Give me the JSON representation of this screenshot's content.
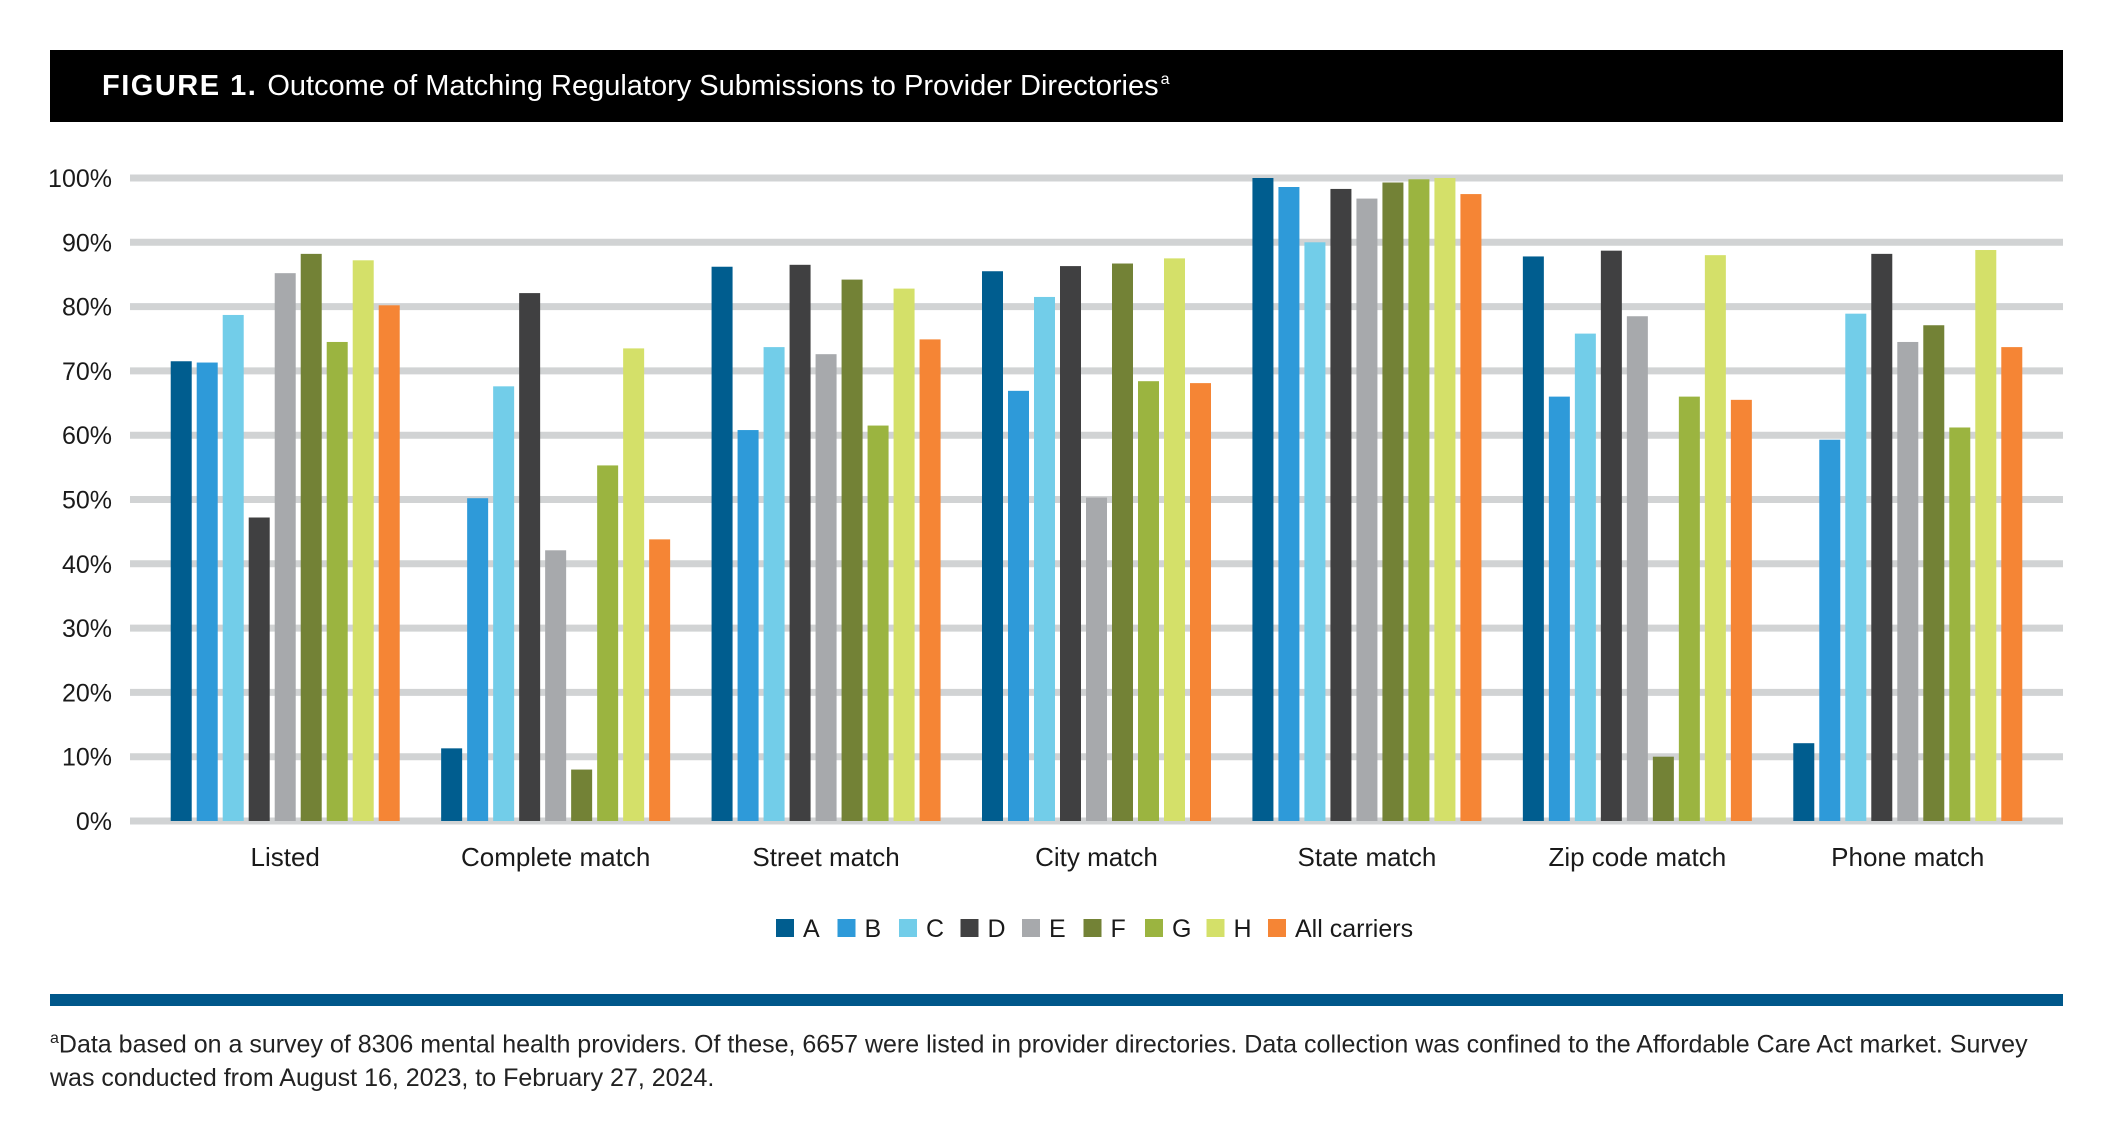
{
  "header": {
    "figure_label": "FIGURE 1.",
    "title": "Outcome of Matching Regulatory Submissions to Provider Directories",
    "title_note_mark": "a"
  },
  "footnote": {
    "mark": "a",
    "text": "Data based on a survey of 8306 mental health providers. Of these, 6657 were listed in provider directories. Data collection was confined to the Affordable Care Act market. Survey was conducted from August 16, 2023, to February 27, 2024."
  },
  "chart_data": {
    "type": "bar",
    "title": "Outcome of Matching Regulatory Submissions to Provider Directories",
    "xlabel": "",
    "ylabel": "",
    "ylim": [
      0,
      100
    ],
    "yticks": [
      0,
      10,
      20,
      30,
      40,
      50,
      60,
      70,
      80,
      90,
      100
    ],
    "ytick_labels": [
      "0%",
      "10%",
      "20%",
      "30%",
      "40%",
      "50%",
      "60%",
      "70%",
      "80%",
      "90%",
      "100%"
    ],
    "grid": true,
    "legend_position": "bottom-center",
    "categories": [
      "Listed",
      "Complete match",
      "Street match",
      "City match",
      "State match",
      "Zip code match",
      "Phone match"
    ],
    "series": [
      {
        "name": "A",
        "color": "#005d8f",
        "values": [
          71.5,
          11.3,
          86.2,
          85.5,
          100,
          87.8,
          12.1
        ]
      },
      {
        "name": "B",
        "color": "#2e9ad9",
        "values": [
          71.3,
          50.2,
          60.8,
          66.9,
          98.6,
          66.0,
          59.3
        ]
      },
      {
        "name": "C",
        "color": "#72cde9",
        "values": [
          78.7,
          67.6,
          73.7,
          81.5,
          90.0,
          75.8,
          78.9
        ]
      },
      {
        "name": "D",
        "color": "#404041",
        "values": [
          47.2,
          82.1,
          86.5,
          86.3,
          98.3,
          88.7,
          88.2
        ]
      },
      {
        "name": "E",
        "color": "#a7a9ac",
        "values": [
          85.2,
          42.1,
          72.6,
          50.3,
          96.8,
          78.5,
          74.5
        ]
      },
      {
        "name": "F",
        "color": "#738236",
        "values": [
          88.2,
          8.0,
          84.2,
          86.7,
          99.3,
          10.0,
          77.1
        ]
      },
      {
        "name": "G",
        "color": "#9bb440",
        "values": [
          74.5,
          55.3,
          61.5,
          68.4,
          99.8,
          66.0,
          61.2
        ]
      },
      {
        "name": "H",
        "color": "#d4e069",
        "values": [
          87.2,
          73.5,
          82.8,
          87.5,
          100,
          88.0,
          88.8
        ]
      },
      {
        "name": "All carriers",
        "color": "#f58535",
        "values": [
          80.2,
          43.8,
          74.9,
          68.1,
          97.5,
          65.5,
          73.7
        ]
      }
    ]
  }
}
